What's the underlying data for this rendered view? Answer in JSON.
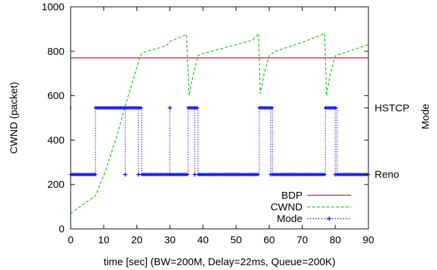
{
  "chart_data": {
    "type": "line",
    "title": "",
    "xlabel": "time [sec] (BW=200M, Delay=22ms, Queue=200K)",
    "ylabel": "CWND (packet)",
    "y2label": "Mode",
    "xlim": [
      0,
      90
    ],
    "ylim": [
      0,
      1000
    ],
    "xticks": [
      "0",
      "10",
      "20",
      "30",
      "40",
      "50",
      "60",
      "70",
      "80",
      "90"
    ],
    "yticks": [
      "0",
      "200",
      "400",
      "600",
      "800",
      "1000"
    ],
    "y2ticks": [
      {
        "label": "HSTCP",
        "value": 545
      },
      {
        "label": "Reno",
        "value": 245
      }
    ],
    "grid": false,
    "legend_position": "bottom-right",
    "colors": {
      "bdp": "#e8001c",
      "cwnd": "#00c400",
      "mode": "#0000ff"
    },
    "series": [
      {
        "name": "BDP",
        "style": "solid",
        "x": [
          0,
          90
        ],
        "y": [
          770,
          770
        ]
      },
      {
        "name": "CWND",
        "style": "dashed",
        "x": [
          0,
          7.5,
          10.5,
          14,
          17,
          19.5,
          21,
          22,
          29,
          30,
          35,
          35.8,
          37,
          38.5,
          40,
          45,
          50,
          55,
          56.8,
          57.3,
          58.5,
          60,
          62,
          70,
          76.8,
          77.3,
          78.5,
          80,
          85,
          90
        ],
        "y": [
          70,
          150,
          260,
          420,
          580,
          700,
          780,
          795,
          825,
          845,
          875,
          600,
          690,
          780,
          790,
          810,
          830,
          850,
          880,
          610,
          700,
          780,
          800,
          840,
          880,
          600,
          700,
          780,
          805,
          830
        ]
      },
      {
        "name": "Mode",
        "style": "dotted-markers",
        "segments": [
          {
            "x0": 0,
            "x1": 7.5,
            "value": "Reno"
          },
          {
            "x0": 7.5,
            "x1": 21.5,
            "value": "HSTCP"
          },
          {
            "x0": 21.5,
            "x1": 35.5,
            "value": "Reno"
          },
          {
            "x0": 35.5,
            "x1": 38.5,
            "value": "HSTCP"
          },
          {
            "x0": 38.5,
            "x1": 57,
            "value": "Reno"
          },
          {
            "x0": 57,
            "x1": 61,
            "value": "HSTCP"
          },
          {
            "x0": 61,
            "x1": 77,
            "value": "Reno"
          },
          {
            "x0": 77,
            "x1": 80.5,
            "value": "HSTCP"
          },
          {
            "x0": 80.5,
            "x1": 90,
            "value": "Reno"
          }
        ],
        "spikes": [
          {
            "x": 16.5,
            "value": "Reno"
          },
          {
            "x": 20.5,
            "value": "Reno"
          },
          {
            "x": 30,
            "value": "HSTCP"
          },
          {
            "x": 37.5,
            "value": "Reno"
          },
          {
            "x": 60.5,
            "value": "Reno"
          },
          {
            "x": 80,
            "value": "Reno"
          }
        ]
      }
    ]
  }
}
